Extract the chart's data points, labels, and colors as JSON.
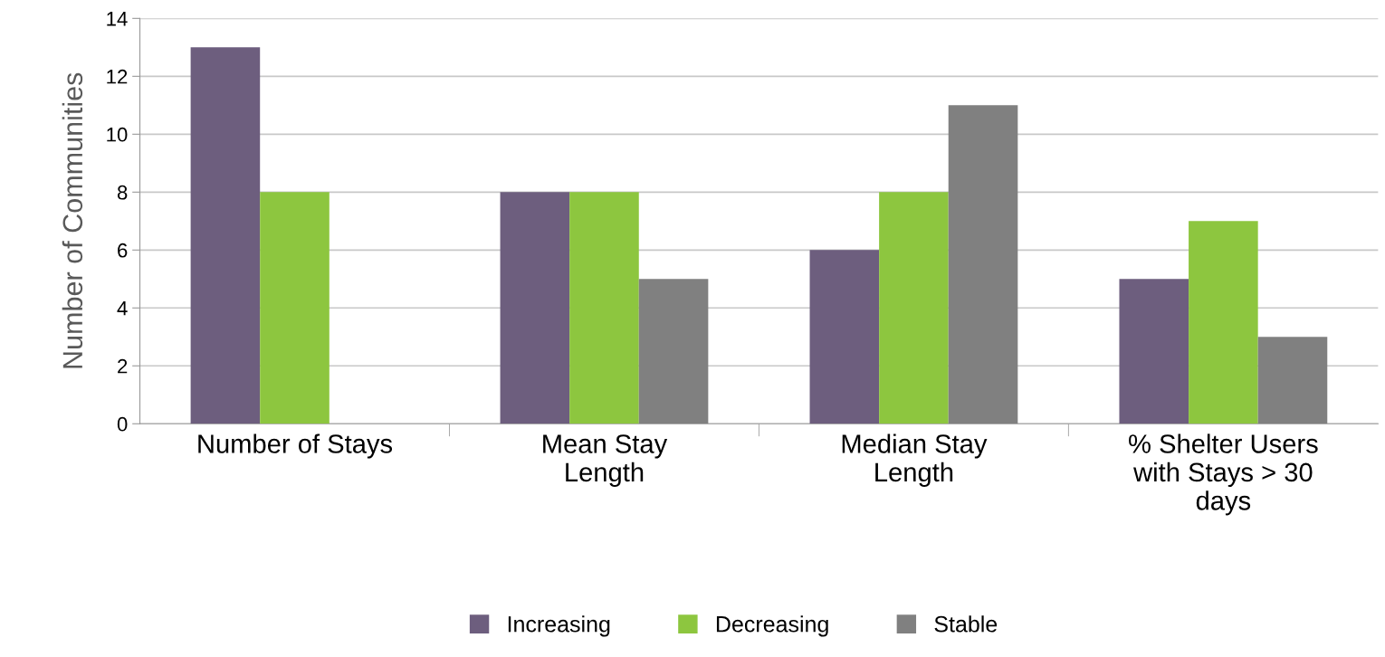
{
  "chart_data": {
    "type": "bar",
    "ylabel": "Number of Communities",
    "categories": [
      "Number of Stays",
      "Mean Stay\nLength",
      "Median Stay\nLength",
      "% Shelter Users\nwith Stays > 30\ndays"
    ],
    "series": [
      {
        "name": "Increasing",
        "color": "#6d5e7e",
        "values": [
          13,
          8,
          6,
          5
        ]
      },
      {
        "name": "Decreasing",
        "color": "#8dc63f",
        "values": [
          8,
          8,
          8,
          7
        ]
      },
      {
        "name": "Stable",
        "color": "#808080",
        "values": [
          null,
          5,
          11,
          3
        ]
      }
    ],
    "ylim": [
      0,
      14
    ],
    "yticks": [
      0,
      2,
      4,
      6,
      8,
      10,
      12,
      14
    ],
    "grid": "y",
    "legend": "bottom"
  }
}
